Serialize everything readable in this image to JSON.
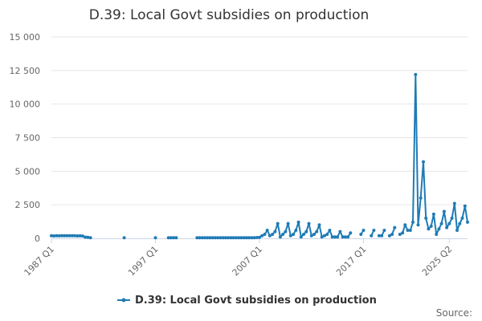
{
  "chart_data": {
    "type": "line",
    "title": "D.39: Local Govt subsidies on production",
    "series_name": "D.39: Local Govt subsidies on production",
    "source_label": "Source:",
    "color": "#1f7bb6",
    "start_year": 1987,
    "start_quarter": 1,
    "ylim": [
      0,
      15000
    ],
    "yticks": [
      0,
      2500,
      5000,
      7500,
      10000,
      12500,
      15000
    ],
    "ytick_labels": [
      "0",
      "2 500",
      "5 000",
      "7 500",
      "10 000",
      "12 500",
      "15 000"
    ],
    "xtick_labels": [
      {
        "label": "1987 Q1",
        "index": 0
      },
      {
        "label": "1997 Q1",
        "index": 40
      },
      {
        "label": "2007 Q1",
        "index": 80
      },
      {
        "label": "2017 Q1",
        "index": 120
      },
      {
        "label": "2025 Q2",
        "index": 153
      }
    ],
    "values": [
      200,
      180,
      190,
      185,
      190,
      195,
      200,
      190,
      195,
      190,
      180,
      185,
      175,
      90,
      80,
      50,
      null,
      null,
      null,
      null,
      null,
      null,
      null,
      null,
      null,
      null,
      null,
      null,
      40,
      null,
      null,
      null,
      null,
      null,
      null,
      null,
      null,
      null,
      null,
      null,
      40,
      null,
      null,
      null,
      null,
      50,
      40,
      40,
      40,
      null,
      null,
      null,
      null,
      null,
      null,
      null,
      40,
      40,
      40,
      40,
      40,
      40,
      40,
      40,
      40,
      40,
      40,
      40,
      40,
      40,
      40,
      40,
      40,
      40,
      40,
      40,
      40,
      40,
      50,
      60,
      80,
      200,
      300,
      600,
      200,
      300,
      500,
      1100,
      100,
      300,
      500,
      1100,
      200,
      300,
      600,
      1200,
      100,
      300,
      500,
      1100,
      200,
      300,
      500,
      1000,
      100,
      200,
      300,
      600,
      100,
      100,
      100,
      500,
      100,
      100,
      100,
      400,
      null,
      null,
      null,
      300,
      600,
      null,
      null,
      200,
      600,
      null,
      200,
      200,
      600,
      null,
      200,
      300,
      800,
      null,
      300,
      400,
      1000,
      600,
      600,
      1200,
      12200,
      1000,
      3000,
      5700,
      1500,
      700,
      900,
      1800,
      300,
      700,
      1100,
      2000,
      800,
      1100,
      1500,
      2600,
      600,
      1100,
      1500,
      2400,
      1200
    ]
  }
}
